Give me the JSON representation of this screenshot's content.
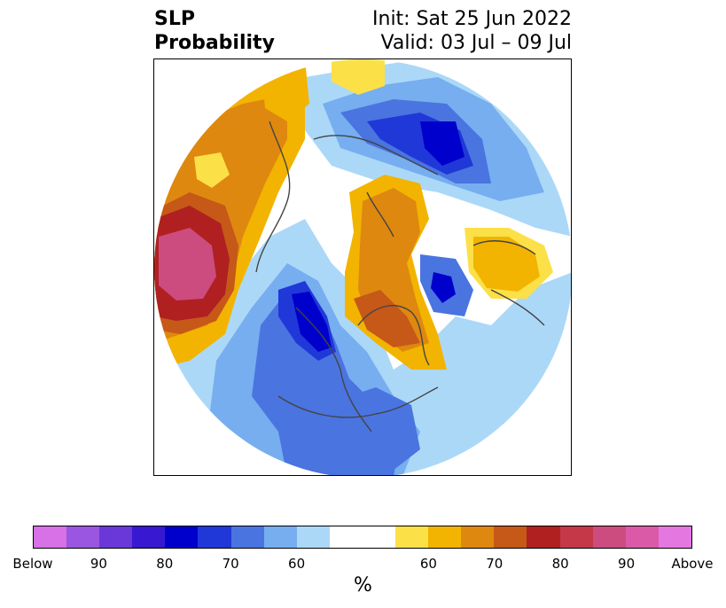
{
  "title": {
    "left_line1": "SLP",
    "left_line2": "Probability",
    "right_line1": "Init: Sat 25 Jun 2022",
    "right_line2": "Valid: 03 Jul – 09 Jul"
  },
  "map": {
    "projection": "polar stereographic (north pole)",
    "ocean_color": "#ffffff",
    "coastline_color": "#444444"
  },
  "colorbar": {
    "unit_label": "%",
    "segments": [
      {
        "color": "#d870e8"
      },
      {
        "color": "#9a56e0"
      },
      {
        "color": "#6a38d8"
      },
      {
        "color": "#3818d0"
      },
      {
        "color": "#0000cc"
      },
      {
        "color": "#2038d8"
      },
      {
        "color": "#4a74e0"
      },
      {
        "color": "#76aef0"
      },
      {
        "color": "#acd8f8"
      },
      {
        "color": "#ffffff"
      },
      {
        "color": "#fce048"
      },
      {
        "color": "#f2b400"
      },
      {
        "color": "#de8810"
      },
      {
        "color": "#c65818"
      },
      {
        "color": "#b02020"
      },
      {
        "color": "#c43848"
      },
      {
        "color": "#cc4c80"
      },
      {
        "color": "#da5aa8"
      },
      {
        "color": "#e478e0"
      }
    ],
    "tick_labels": [
      "Below",
      "90",
      "80",
      "70",
      "60",
      "60",
      "70",
      "80",
      "90",
      "Above"
    ]
  }
}
